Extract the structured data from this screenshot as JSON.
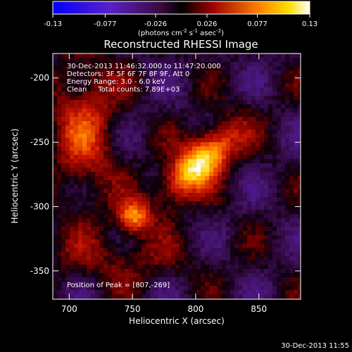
{
  "colorbar": {
    "ticks": [
      "-0.13",
      "-0.077",
      "-0.026",
      "0.026",
      "0.077",
      "0.13"
    ],
    "tick_values": [
      -0.13,
      -0.077,
      -0.026,
      0.026,
      0.077,
      0.13
    ],
    "range": [
      -0.13,
      0.13
    ],
    "units_main": "(photons cm",
    "units_sup1": "-2",
    "units_mid1": " s",
    "units_sup2": "-1",
    "units_mid2": " asec",
    "units_sup3": "-2",
    "units_end": ")"
  },
  "plot": {
    "title": "Reconstructed RHESSI Image",
    "info": [
      "30-Dec-2013 11:46:32.000 to 11:47:20.000",
      "Detectors: 3F 5F 6F 7F 8F 9F, Att 0",
      "Energy Range: 3.0 - 6.0 keV",
      "Clean     Total counts: 7.89E+03"
    ],
    "peak_label": "Position of Peak = [807,-269]",
    "xlabel": "Heliocentric X (arcsec)",
    "ylabel": "Heliocentric Y (arcsec)",
    "xticks": [
      "700",
      "750",
      "800",
      "850"
    ],
    "xtick_values": [
      700,
      750,
      800,
      850
    ],
    "yticks": [
      "-200",
      "-250",
      "-300",
      "-350"
    ],
    "ytick_values": [
      -200,
      -250,
      -300,
      -350
    ],
    "xlim": [
      687,
      883
    ],
    "ylim": [
      -372,
      -181
    ]
  },
  "footer_time": "30-Dec-2013 11:55",
  "chart_data": {
    "type": "heatmap",
    "title": "Reconstructed RHESSI Image",
    "xlabel": "Heliocentric X (arcsec)",
    "ylabel": "Heliocentric Y (arcsec)",
    "xlim": [
      687,
      883
    ],
    "ylim": [
      -372,
      -181
    ],
    "zlim": [
      -0.13,
      0.13
    ],
    "sources": [
      {
        "x": 803,
        "y": -266,
        "peak": 0.13
      },
      {
        "x": 751,
        "y": -308,
        "peak": 0.09
      },
      {
        "x": 712,
        "y": -240,
        "peak": 0.07
      }
    ],
    "peak_position": [
      807,
      -269
    ]
  }
}
